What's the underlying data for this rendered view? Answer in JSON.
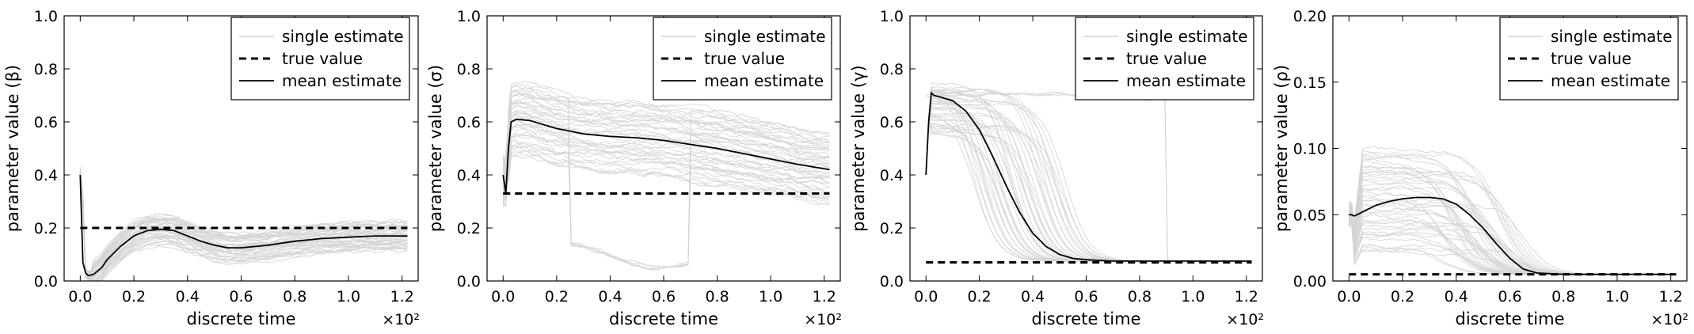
{
  "chart_data": [
    {
      "type": "line",
      "xlabel": "discrete time",
      "ylabel": "parameter value (β)",
      "x_multiplier": "×10²",
      "xlim": [
        -0.06,
        1.26
      ],
      "ylim": [
        0,
        1.0
      ],
      "xticks": [
        "0.0",
        "0.2",
        "0.4",
        "0.6",
        "0.8",
        "1.0",
        "1.2"
      ],
      "yticks": [
        "0.0",
        "0.2",
        "0.4",
        "0.6",
        "0.8",
        "1.0"
      ],
      "legend": [
        "single estimate",
        "true value",
        "mean estimate"
      ],
      "legend_position": "top-right",
      "true_value": 0.2,
      "mean_estimate": {
        "x": [
          0.0,
          0.01,
          0.02,
          0.03,
          0.05,
          0.08,
          0.1,
          0.15,
          0.2,
          0.25,
          0.3,
          0.35,
          0.4,
          0.45,
          0.5,
          0.55,
          0.6,
          0.7,
          0.8,
          0.9,
          1.0,
          1.1,
          1.22
        ],
        "y": [
          0.4,
          0.07,
          0.03,
          0.02,
          0.025,
          0.05,
          0.08,
          0.13,
          0.17,
          0.19,
          0.195,
          0.19,
          0.17,
          0.15,
          0.135,
          0.125,
          0.125,
          0.135,
          0.15,
          0.16,
          0.165,
          0.17,
          0.17
        ]
      },
      "single_estimates": {
        "profile": "beta",
        "count": 45,
        "spread": 0.055,
        "x_max": 1.22
      }
    },
    {
      "type": "line",
      "xlabel": "discrete time",
      "ylabel": "parameter value (σ)",
      "x_multiplier": "×10²",
      "xlim": [
        -0.06,
        1.26
      ],
      "ylim": [
        0,
        1.0
      ],
      "xticks": [
        "0.0",
        "0.2",
        "0.4",
        "0.6",
        "0.8",
        "1.0",
        "1.2"
      ],
      "yticks": [
        "0.0",
        "0.2",
        "0.4",
        "0.6",
        "0.8",
        "1.0"
      ],
      "legend": [
        "single estimate",
        "true value",
        "mean estimate"
      ],
      "legend_position": "top-right",
      "true_value": 0.33,
      "mean_estimate": {
        "x": [
          0.0,
          0.01,
          0.02,
          0.03,
          0.05,
          0.1,
          0.15,
          0.2,
          0.3,
          0.4,
          0.5,
          0.6,
          0.7,
          0.8,
          0.9,
          1.0,
          1.1,
          1.22
        ],
        "y": [
          0.4,
          0.33,
          0.5,
          0.6,
          0.61,
          0.605,
          0.59,
          0.575,
          0.555,
          0.545,
          0.54,
          0.53,
          0.515,
          0.5,
          0.48,
          0.46,
          0.44,
          0.42
        ]
      },
      "single_estimates": {
        "profile": "sigma",
        "count": 45,
        "spread": 0.14,
        "x_max": 1.22
      }
    },
    {
      "type": "line",
      "xlabel": "discrete time",
      "ylabel": "parameter value (γ)",
      "x_multiplier": "×10²",
      "xlim": [
        -0.06,
        1.26
      ],
      "ylim": [
        0,
        1.0
      ],
      "xticks": [
        "0.0",
        "0.2",
        "0.4",
        "0.6",
        "0.8",
        "1.0",
        "1.2"
      ],
      "yticks": [
        "0.0",
        "0.2",
        "0.4",
        "0.6",
        "0.8",
        "1.0"
      ],
      "legend": [
        "single estimate",
        "true value",
        "mean estimate"
      ],
      "legend_position": "top-right",
      "true_value": 0.07,
      "mean_estimate": {
        "x": [
          0.0,
          0.01,
          0.02,
          0.03,
          0.05,
          0.1,
          0.15,
          0.2,
          0.25,
          0.3,
          0.35,
          0.4,
          0.45,
          0.5,
          0.55,
          0.6,
          0.7,
          0.8,
          0.9,
          1.0,
          1.1,
          1.22
        ],
        "y": [
          0.4,
          0.6,
          0.71,
          0.7,
          0.695,
          0.68,
          0.64,
          0.57,
          0.47,
          0.36,
          0.26,
          0.18,
          0.13,
          0.1,
          0.085,
          0.08,
          0.075,
          0.075,
          0.075,
          0.075,
          0.075,
          0.075
        ]
      },
      "single_estimates": {
        "profile": "gamma",
        "count": 45,
        "spread": 0.07,
        "x_max": 1.22
      }
    },
    {
      "type": "line",
      "xlabel": "discrete time",
      "ylabel": "parameter value (ρ)",
      "x_multiplier": "×10²",
      "xlim": [
        -0.06,
        1.26
      ],
      "ylim": [
        0,
        0.2
      ],
      "xticks": [
        "0.0",
        "0.2",
        "0.4",
        "0.6",
        "0.8",
        "1.0",
        "1.2"
      ],
      "yticks": [
        "0.00",
        "0.05",
        "0.10",
        "0.15",
        "0.20"
      ],
      "legend": [
        "single estimate",
        "true value",
        "mean estimate"
      ],
      "legend_position": "top-right",
      "true_value": 0.005,
      "mean_estimate": {
        "x": [
          0.0,
          0.01,
          0.02,
          0.03,
          0.05,
          0.1,
          0.15,
          0.2,
          0.25,
          0.3,
          0.35,
          0.4,
          0.45,
          0.5,
          0.55,
          0.6,
          0.65,
          0.7,
          0.8,
          0.9,
          1.0,
          1.1,
          1.22
        ],
        "y": [
          0.05,
          0.05,
          0.049,
          0.05,
          0.052,
          0.057,
          0.06,
          0.062,
          0.063,
          0.063,
          0.062,
          0.058,
          0.05,
          0.04,
          0.028,
          0.017,
          0.009,
          0.006,
          0.005,
          0.005,
          0.005,
          0.005,
          0.005
        ]
      },
      "single_estimates": {
        "profile": "rho",
        "count": 45,
        "spread": 0.03,
        "x_max": 1.22
      }
    }
  ]
}
